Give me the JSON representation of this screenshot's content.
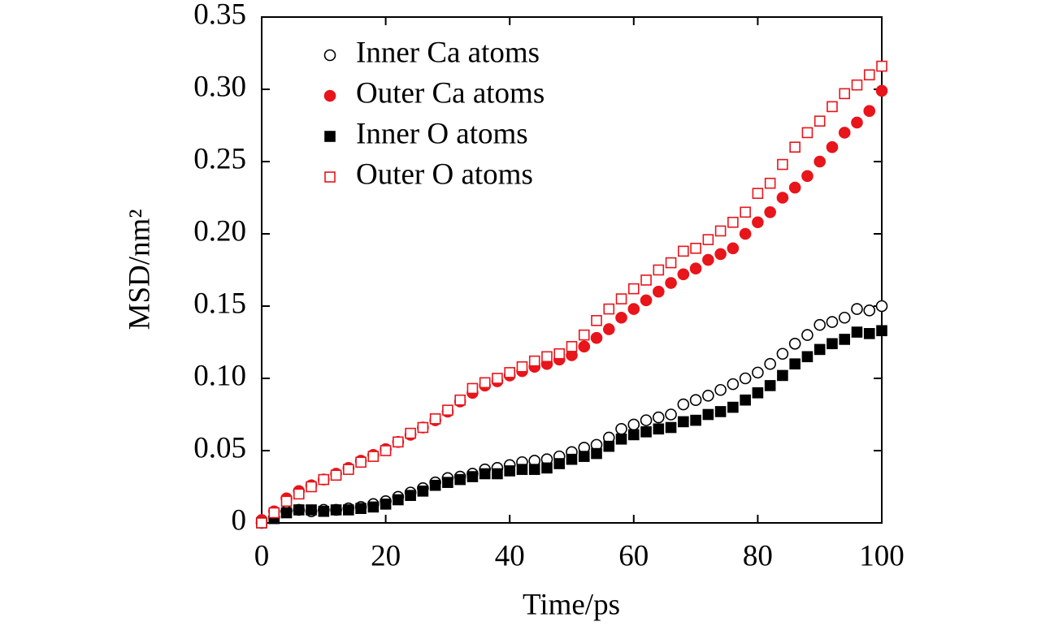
{
  "chart_data": {
    "type": "scatter",
    "x_label": "Time/ps",
    "y_label": "MSD/nm²",
    "x": [
      0,
      2,
      4,
      6,
      8,
      10,
      12,
      14,
      16,
      18,
      20,
      22,
      24,
      26,
      28,
      30,
      32,
      34,
      36,
      38,
      40,
      42,
      44,
      46,
      48,
      50,
      52,
      54,
      56,
      58,
      60,
      62,
      64,
      66,
      68,
      70,
      72,
      74,
      76,
      78,
      80,
      82,
      84,
      86,
      88,
      90,
      92,
      94,
      96,
      98,
      100
    ],
    "xlim": [
      0,
      100
    ],
    "xticks": [
      0,
      20,
      40,
      60,
      80,
      100
    ],
    "ylim": [
      0,
      0.35
    ],
    "yticks": [
      0,
      0.05,
      {
        "value": 0.1,
        "label": "0.10"
      },
      0.15,
      {
        "value": 0.2,
        "label": "0.20"
      },
      0.25,
      {
        "value": 0.3,
        "label": "0.30"
      },
      0.35
    ],
    "legend": "upper-left",
    "series": [
      {
        "name": "Inner Ca atoms",
        "color": "#000000",
        "marker": "circle",
        "filled": false,
        "values": [
          0,
          0.004,
          0.008,
          0.009,
          0.008,
          0.009,
          0.009,
          0.01,
          0.011,
          0.013,
          0.015,
          0.018,
          0.021,
          0.024,
          0.028,
          0.031,
          0.032,
          0.034,
          0.037,
          0.038,
          0.04,
          0.042,
          0.043,
          0.044,
          0.046,
          0.049,
          0.052,
          0.054,
          0.059,
          0.065,
          0.068,
          0.071,
          0.073,
          0.075,
          0.082,
          0.085,
          0.088,
          0.092,
          0.096,
          0.1,
          0.104,
          0.11,
          0.117,
          0.124,
          0.13,
          0.137,
          0.139,
          0.142,
          0.148,
          0.147,
          0.15
        ]
      },
      {
        "name": "Outer Ca atoms",
        "color": "#e8151b",
        "marker": "circle",
        "filled": true,
        "values": [
          0.002,
          0.008,
          0.017,
          0.022,
          0.026,
          0.03,
          0.034,
          0.038,
          0.043,
          0.047,
          0.051,
          0.056,
          0.061,
          0.066,
          0.071,
          0.077,
          0.084,
          0.09,
          0.095,
          0.098,
          0.102,
          0.105,
          0.108,
          0.11,
          0.113,
          0.116,
          0.122,
          0.128,
          0.134,
          0.142,
          0.148,
          0.154,
          0.16,
          0.166,
          0.172,
          0.176,
          0.182,
          0.186,
          0.19,
          0.2,
          0.208,
          0.215,
          0.225,
          0.232,
          0.24,
          0.25,
          0.26,
          0.27,
          0.277,
          0.285,
          0.299
        ]
      },
      {
        "name": "Inner O atoms",
        "color": "#000000",
        "marker": "square",
        "filled": true,
        "values": [
          0,
          0.003,
          0.007,
          0.009,
          0.009,
          0.008,
          0.009,
          0.009,
          0.01,
          0.011,
          0.013,
          0.016,
          0.019,
          0.022,
          0.026,
          0.028,
          0.03,
          0.032,
          0.034,
          0.034,
          0.036,
          0.037,
          0.037,
          0.038,
          0.041,
          0.044,
          0.046,
          0.048,
          0.053,
          0.058,
          0.061,
          0.063,
          0.065,
          0.066,
          0.07,
          0.071,
          0.075,
          0.077,
          0.08,
          0.085,
          0.09,
          0.095,
          0.102,
          0.11,
          0.115,
          0.12,
          0.124,
          0.127,
          0.132,
          0.131,
          0.133
        ]
      },
      {
        "name": "Outer O atoms",
        "color": "#e8151b",
        "marker": "square",
        "filled": false,
        "values": [
          0,
          0.007,
          0.015,
          0.02,
          0.025,
          0.03,
          0.033,
          0.037,
          0.042,
          0.046,
          0.05,
          0.056,
          0.062,
          0.066,
          0.072,
          0.078,
          0.085,
          0.093,
          0.097,
          0.1,
          0.104,
          0.108,
          0.112,
          0.115,
          0.117,
          0.122,
          0.13,
          0.14,
          0.148,
          0.155,
          0.162,
          0.168,
          0.175,
          0.18,
          0.188,
          0.19,
          0.196,
          0.202,
          0.208,
          0.215,
          0.228,
          0.235,
          0.248,
          0.26,
          0.27,
          0.278,
          0.288,
          0.297,
          0.303,
          0.31,
          0.316
        ]
      }
    ]
  }
}
